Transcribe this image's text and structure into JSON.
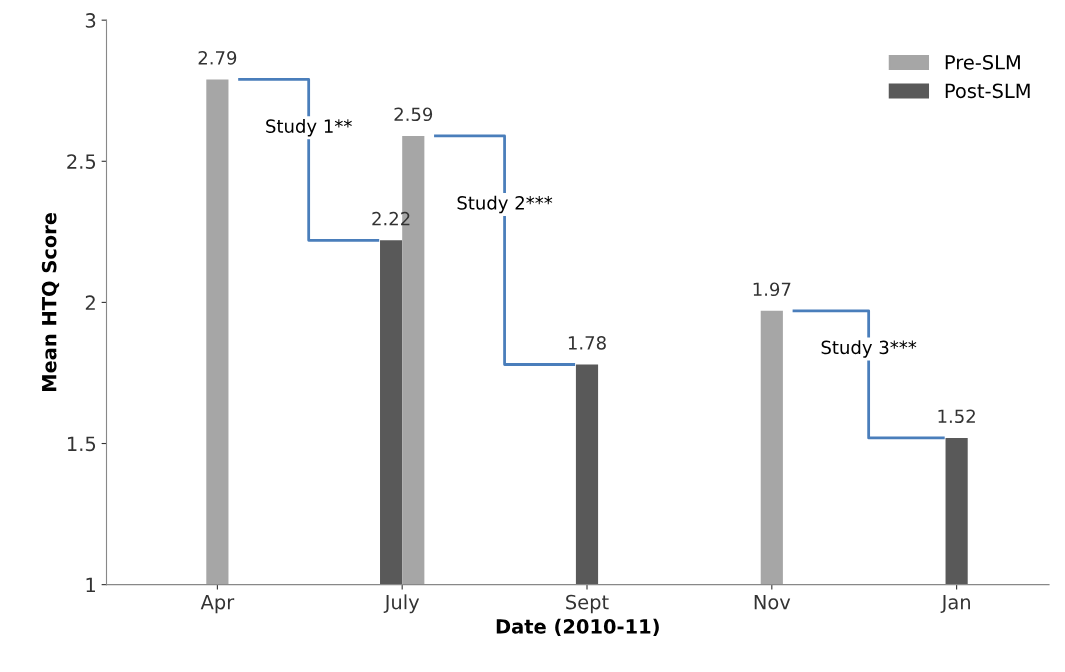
{
  "chart_data": {
    "type": "bar",
    "xlabel": "Date (2010-11)",
    "ylabel": "Mean HTQ Score",
    "categories": [
      "Apr",
      "July",
      "Sept",
      "Nov",
      "Jan"
    ],
    "series": [
      {
        "name": "Post-SLM",
        "color": "#595959",
        "values": [
          null,
          2.22,
          1.78,
          null,
          1.52
        ]
      },
      {
        "name": "Pre-SLM",
        "color": "#a6a6a6",
        "values": [
          2.79,
          2.59,
          null,
          1.97,
          null
        ]
      }
    ],
    "ylim": [
      1,
      3
    ],
    "yticks": [
      1,
      1.5,
      2,
      2.5,
      3
    ],
    "grid": false,
    "legend": "top right",
    "data_labels": true,
    "annotations": [
      "Study 1**",
      "Study 2***",
      "Study 3***"
    ]
  }
}
